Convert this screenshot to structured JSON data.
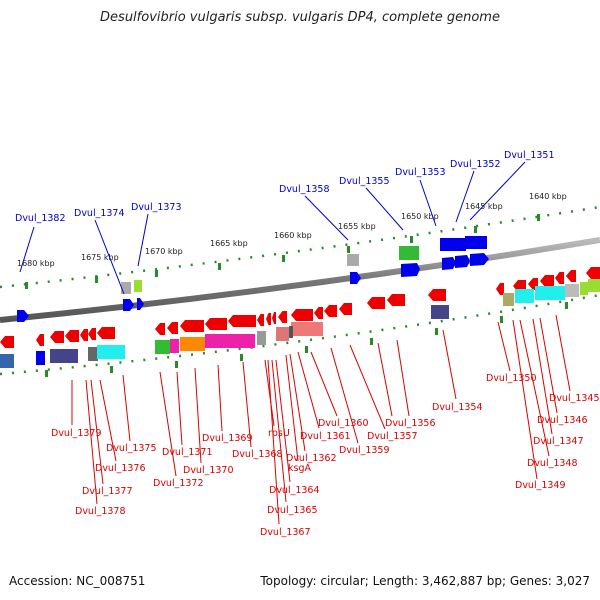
{
  "title": "Desulfovibrio vulgaris subsp. vulgaris DP4, complete genome",
  "accession": "Accession: NC_008751",
  "summary": "Topology: circular; Length: 3,462,887 bp; Genes: 3,027",
  "scale_labels": [
    "1680 kbp",
    "1675 kbp",
    "1670 kbp",
    "1665 kbp",
    "1660 kbp",
    "1655 kbp",
    "1650 kbp",
    "1645 kbp",
    "1640 kbp"
  ],
  "labels_top": [
    "Dvul_1382",
    "Dvul_1374",
    "Dvul_1373",
    "Dvul_1358",
    "Dvul_1355",
    "Dvul_1353",
    "Dvul_1352",
    "Dvul_1351"
  ],
  "labels_bottom": [
    "Dvul_1379",
    "Dvul_1378",
    "Dvul_1377",
    "Dvul_1376",
    "Dvul_1375",
    "Dvul_1372",
    "Dvul_1371",
    "Dvul_1370",
    "Dvul_1369",
    "Dvul_1368",
    "rpsU",
    "Dvul_1367",
    "Dvul_1365",
    "Dvul_1364",
    "ksgA",
    "Dvul_1362",
    "Dvul_1361",
    "Dvul_1360",
    "Dvul_1359",
    "Dvul_1357",
    "Dvul_1356",
    "Dvul_1354",
    "Dvul_1350",
    "Dvul_1349",
    "Dvul_1348",
    "Dvul_1347",
    "Dvul_1346",
    "Dvul_1345"
  ],
  "colors": {
    "forward_label": "#0000cc",
    "reverse_label": "#dd0000",
    "backbone": "#808080",
    "tick": "#2a8a2a",
    "forward_gene": "#0000ee",
    "reverse_gene": "#ee0000",
    "magenta": "#ee22aa",
    "orange": "#ff8800",
    "cyan": "#22eeee",
    "purple": "#444488",
    "green": "#33bb33",
    "olive": "#99aa44",
    "grey": "#aaaaaa",
    "salmon": "#ee7777"
  }
}
